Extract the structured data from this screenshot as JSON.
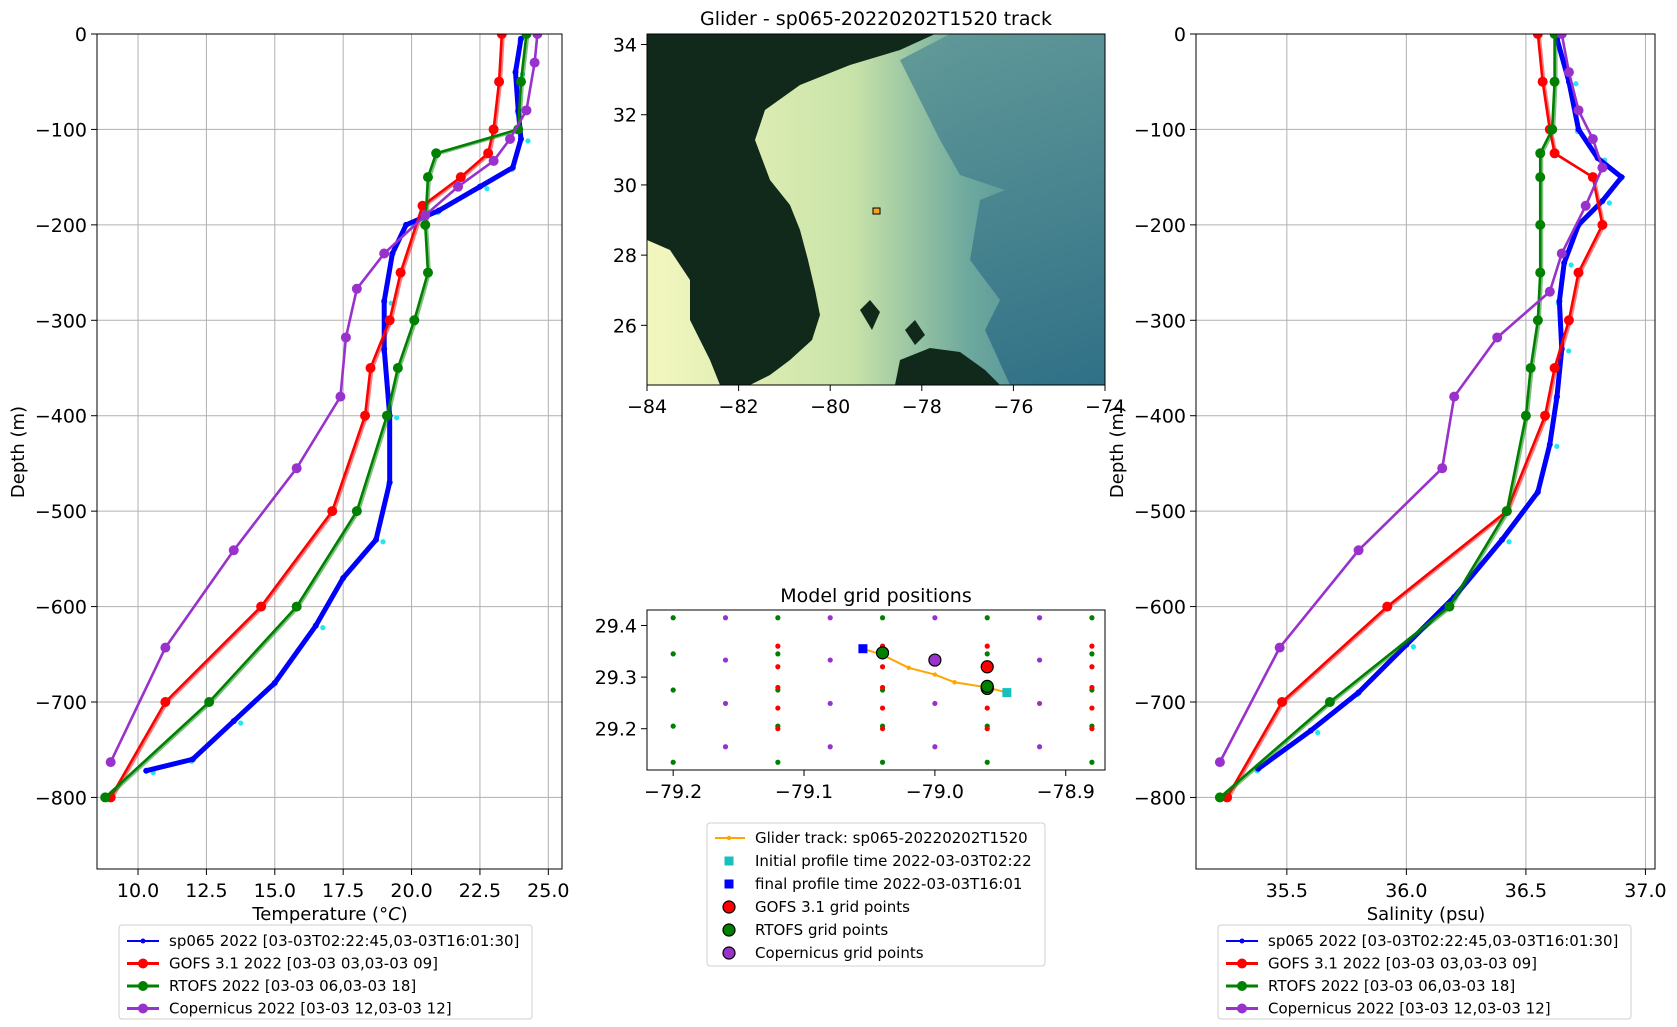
{
  "chart_data": [
    {
      "type": "line",
      "xlabel": "Temperature (°C)",
      "ylabel": "Depth (m)",
      "xlim": [
        8.5,
        25.5
      ],
      "ylim": [
        -875,
        0
      ],
      "xticks": [
        "10.0",
        "12.5",
        "15.0",
        "17.5",
        "20.0",
        "22.5",
        "25.0"
      ],
      "yticks": [
        "0",
        "−100",
        "−200",
        "−300",
        "−400",
        "−500",
        "−600",
        "−700",
        "−800"
      ],
      "grid": true,
      "legend_position": "below",
      "legend": [
        "sp065 2022 [03-03T02:22:45,03-03T16:01:30]",
        "GOFS 3.1 2022 [03-03 03,03-03 09]",
        "RTOFS 2022 [03-03 06,03-03 18]",
        "Copernicus 2022 [03-03 12,03-03 12]"
      ],
      "series": [
        {
          "name": "sp065 2022 [03-03T02:22:45,03-03T16:01:30]",
          "color": "#0000ff",
          "points": [
            [
              24.0,
              -5
            ],
            [
              23.8,
              -40
            ],
            [
              23.9,
              -80
            ],
            [
              24.0,
              -110
            ],
            [
              23.7,
              -140
            ],
            [
              22.5,
              -160
            ],
            [
              21.0,
              -185
            ],
            [
              19.8,
              -200
            ],
            [
              19.3,
              -230
            ],
            [
              19.0,
              -280
            ],
            [
              19.0,
              -330
            ],
            [
              19.2,
              -400
            ],
            [
              19.2,
              -470
            ],
            [
              18.7,
              -530
            ],
            [
              17.5,
              -570
            ],
            [
              16.5,
              -620
            ],
            [
              15.0,
              -680
            ],
            [
              13.5,
              -720
            ],
            [
              12.0,
              -760
            ],
            [
              10.3,
              -772
            ]
          ]
        },
        {
          "name": "GOFS 3.1 2022 [03-03 03,03-03 09]",
          "color": "#ff0000",
          "points": [
            [
              23.3,
              0
            ],
            [
              23.2,
              -50
            ],
            [
              23.0,
              -100
            ],
            [
              22.8,
              -125
            ],
            [
              21.8,
              -150
            ],
            [
              20.4,
              -180
            ],
            [
              19.6,
              -250
            ],
            [
              19.2,
              -300
            ],
            [
              18.5,
              -350
            ],
            [
              18.3,
              -400
            ],
            [
              17.1,
              -500
            ],
            [
              14.5,
              -600
            ],
            [
              11.0,
              -700
            ],
            [
              9.0,
              -800
            ]
          ]
        },
        {
          "name": "RTOFS 2022 [03-03 06,03-03 18]",
          "color": "#008000",
          "points": [
            [
              24.2,
              0
            ],
            [
              24.0,
              -50
            ],
            [
              23.9,
              -100
            ],
            [
              20.9,
              -125
            ],
            [
              20.6,
              -150
            ],
            [
              20.5,
              -200
            ],
            [
              20.6,
              -250
            ],
            [
              20.1,
              -300
            ],
            [
              19.5,
              -350
            ],
            [
              19.1,
              -400
            ],
            [
              18.0,
              -500
            ],
            [
              15.8,
              -600
            ],
            [
              12.6,
              -700
            ],
            [
              8.8,
              -800
            ]
          ]
        },
        {
          "name": "Copernicus 2022 [03-03 12,03-03 12]",
          "color": "#9932cc",
          "points": [
            [
              24.6,
              0
            ],
            [
              24.5,
              -30
            ],
            [
              24.2,
              -80
            ],
            [
              23.6,
              -110
            ],
            [
              23.0,
              -133
            ],
            [
              21.7,
              -160
            ],
            [
              20.5,
              -190
            ],
            [
              19.0,
              -230
            ],
            [
              18.0,
              -267
            ],
            [
              17.6,
              -318
            ],
            [
              17.4,
              -380
            ],
            [
              15.8,
              -455
            ],
            [
              13.5,
              -541
            ],
            [
              11.0,
              -643
            ],
            [
              9.0,
              -763
            ]
          ]
        }
      ]
    },
    {
      "type": "map",
      "title": "Glider - sp065-20220202T1520 track",
      "xlim": [
        -84,
        -74
      ],
      "ylim": [
        24.3,
        34.3
      ],
      "xticks": [
        "−84",
        "−82",
        "−80",
        "−78",
        "−76",
        "−74"
      ],
      "yticks": [
        "26",
        "28",
        "30",
        "32",
        "34"
      ],
      "glider_marker": {
        "lon": -79.0,
        "lat": 29.3
      },
      "colors": {
        "land": "#10291a",
        "shelf": "#fafcc6",
        "deep": "#3b7d8e"
      }
    },
    {
      "type": "scatter",
      "title": "Model grid positions",
      "xlim": [
        -79.22,
        -78.87
      ],
      "ylim": [
        29.12,
        29.43
      ],
      "xticks": [
        "−79.2",
        "−79.1",
        "−79.0",
        "−78.9"
      ],
      "yticks": [
        "29.2",
        "29.3",
        "29.4"
      ],
      "legend": [
        "Glider track: sp065-20220202T1520",
        "Initial profile time 2022-03-03T02:22",
        "final profile time 2022-03-03T16:01",
        "GOFS 3.1 grid points",
        "RTOFS grid points",
        "Copernicus grid points"
      ],
      "glider_track": [
        [
          -79.055,
          29.355
        ],
        [
          -79.04,
          29.343
        ],
        [
          -79.02,
          29.318
        ],
        [
          -79.0,
          29.305
        ],
        [
          -78.985,
          29.29
        ],
        [
          -78.96,
          29.28
        ],
        [
          -78.945,
          29.27
        ]
      ],
      "initial_profile": [
        -78.945,
        29.27
      ],
      "final_profile": [
        -79.055,
        29.355
      ],
      "gofs_points": [
        [
          -78.96,
          29.32
        ],
        [
          -78.96,
          29.28
        ]
      ],
      "rtofs_points": [
        [
          -79.04,
          29.347
        ],
        [
          -78.96,
          29.278
        ],
        [
          -78.96,
          29.282
        ]
      ],
      "copernicus_points": [
        [
          -79.0,
          29.333
        ]
      ],
      "grid_rtofs_x": [
        -79.2,
        -79.12,
        -79.04,
        -78.96,
        -78.88
      ],
      "grid_rtofs_y": [
        29.135,
        29.205,
        29.275,
        29.345,
        29.415
      ],
      "grid_gofs_x": [
        -79.12,
        -79.04,
        -78.96,
        -78.88
      ],
      "grid_gofs_y": [
        29.2,
        29.24,
        29.28,
        29.32,
        29.36
      ],
      "grid_cop_x": [
        -79.16,
        -79.08,
        -79.0,
        -78.92
      ],
      "grid_cop_y": [
        29.165,
        29.249,
        29.333,
        29.415
      ],
      "grid_cop_x2": [
        -79.12,
        -79.04,
        -78.96,
        -78.88
      ],
      "grid_cop_y2": [
        29.207,
        29.291,
        29.375
      ]
    },
    {
      "type": "line",
      "xlabel": "Salinity (psu)",
      "ylabel": "Depth (m)",
      "xlim": [
        35.12,
        37.04
      ],
      "ylim": [
        -875,
        0
      ],
      "xticks": [
        "35.5",
        "36.0",
        "36.5",
        "37.0"
      ],
      "yticks": [
        "0",
        "−100",
        "−200",
        "−300",
        "−400",
        "−500",
        "−600",
        "−700",
        "−800"
      ],
      "grid": true,
      "legend_position": "below",
      "legend": [
        "sp065 2022 [03-03T02:22:45,03-03T16:01:30]",
        "GOFS 3.1 2022 [03-03 03,03-03 09]",
        "RTOFS 2022 [03-03 06,03-03 18]",
        "Copernicus 2022 [03-03 12,03-03 12]"
      ],
      "series": [
        {
          "name": "sp065 2022 [03-03T02:22:45,03-03T16:01:30]",
          "color": "#0000ff",
          "points": [
            [
              36.63,
              -5
            ],
            [
              36.68,
              -50
            ],
            [
              36.72,
              -100
            ],
            [
              36.8,
              -130
            ],
            [
              36.9,
              -150
            ],
            [
              36.82,
              -175
            ],
            [
              36.72,
              -200
            ],
            [
              36.66,
              -240
            ],
            [
              36.64,
              -280
            ],
            [
              36.65,
              -330
            ],
            [
              36.63,
              -380
            ],
            [
              36.6,
              -430
            ],
            [
              36.55,
              -480
            ],
            [
              36.4,
              -530
            ],
            [
              36.2,
              -590
            ],
            [
              36.0,
              -640
            ],
            [
              35.8,
              -690
            ],
            [
              35.6,
              -730
            ],
            [
              35.38,
              -770
            ]
          ]
        },
        {
          "name": "GOFS 3.1 2022 [03-03 03,03-03 09]",
          "color": "#ff0000",
          "points": [
            [
              36.55,
              0
            ],
            [
              36.57,
              -50
            ],
            [
              36.6,
              -100
            ],
            [
              36.62,
              -125
            ],
            [
              36.78,
              -150
            ],
            [
              36.82,
              -200
            ],
            [
              36.72,
              -250
            ],
            [
              36.68,
              -300
            ],
            [
              36.62,
              -350
            ],
            [
              36.58,
              -400
            ],
            [
              36.42,
              -500
            ],
            [
              35.92,
              -600
            ],
            [
              35.48,
              -700
            ],
            [
              35.25,
              -800
            ]
          ]
        },
        {
          "name": "RTOFS 2022 [03-03 06,03-03 18]",
          "color": "#008000",
          "points": [
            [
              36.62,
              0
            ],
            [
              36.62,
              -50
            ],
            [
              36.61,
              -100
            ],
            [
              36.56,
              -125
            ],
            [
              36.56,
              -150
            ],
            [
              36.56,
              -200
            ],
            [
              36.56,
              -250
            ],
            [
              36.55,
              -300
            ],
            [
              36.52,
              -350
            ],
            [
              36.5,
              -400
            ],
            [
              36.42,
              -500
            ],
            [
              36.18,
              -600
            ],
            [
              35.68,
              -700
            ],
            [
              35.22,
              -800
            ]
          ]
        },
        {
          "name": "Copernicus 2022 [03-03 12,03-03 12]",
          "color": "#9932cc",
          "points": [
            [
              36.65,
              0
            ],
            [
              36.68,
              -40
            ],
            [
              36.72,
              -80
            ],
            [
              36.78,
              -110
            ],
            [
              36.82,
              -140
            ],
            [
              36.75,
              -180
            ],
            [
              36.65,
              -230
            ],
            [
              36.6,
              -270
            ],
            [
              36.38,
              -318
            ],
            [
              36.2,
              -380
            ],
            [
              36.15,
              -455
            ],
            [
              35.8,
              -541
            ],
            [
              35.47,
              -643
            ],
            [
              35.22,
              -763
            ]
          ]
        }
      ]
    }
  ]
}
